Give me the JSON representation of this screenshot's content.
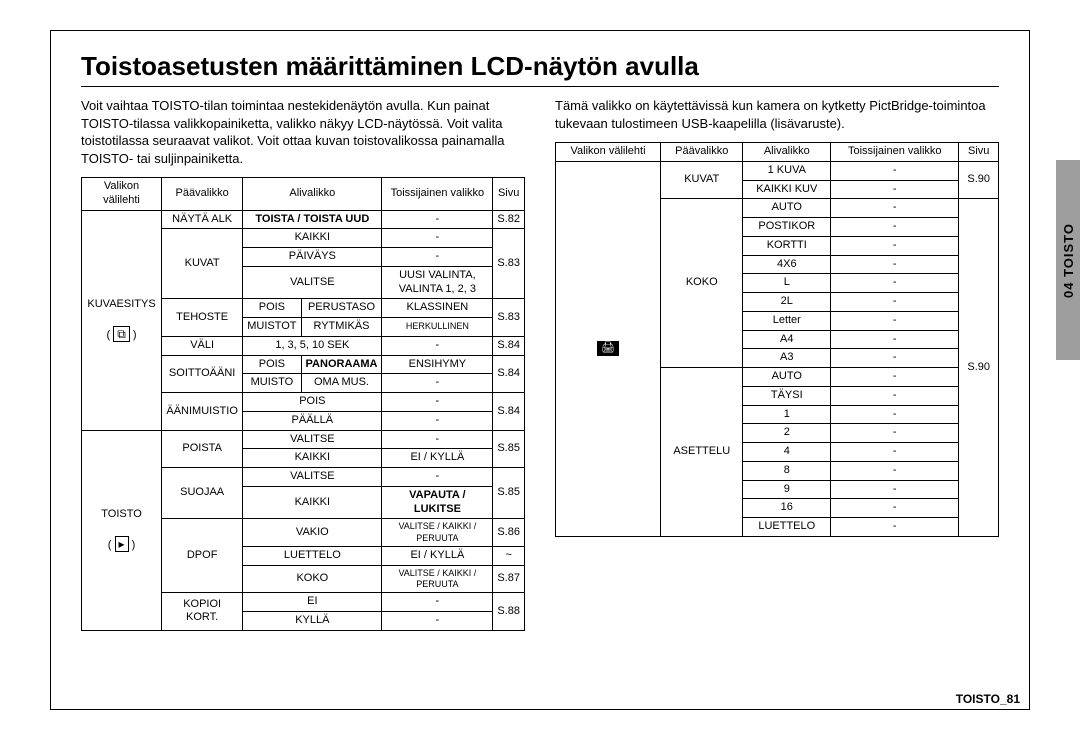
{
  "title": "Toistoasetusten määrittäminen LCD-näytön avulla",
  "intro_left": "Voit vaihtaa TOISTO-tilan toimintaa nestekidenäytön avulla. Kun painat TOISTO-tilassa valikkopainiketta, valikko näkyy LCD-näytössä. Voit valita toistotilassa seuraavat valikot. Voit ottaa kuvan toistovalikossa painamalla TOISTO- tai suljinpainiketta.",
  "intro_right": "Tämä valikko on käytettävissä kun kamera on kytketty PictBridge-toimintoa tukevaan tulostimeen USB-kaapelilla (lisävaruste).",
  "headers": {
    "c1": "Valikon välilehti",
    "c2": "Päävalikko",
    "c3": "Alivalikko",
    "c4a": "Toissijainen valikko",
    "c4b": "Toissijainen valikko",
    "c5": "Sivu"
  },
  "left": {
    "tab1_name": "KUVAESITYS",
    "tab1_sym": "⧉",
    "tab2_name": "TOISTO",
    "tab2_sym": "▸",
    "r_nayta": "NÄYTÄ ALK",
    "r_toista": "TOISTA / TOISTA UUD",
    "p82": "S.82",
    "r_kuvat": "KUVAT",
    "r_kaikki": "KAIKKI",
    "r_paivays": "PÄIVÄYS",
    "r_valitse": "VALITSE",
    "r_uusi": "UUSI VALINTA, VALINTA 1, 2, 3",
    "p83": "S.83",
    "r_tehoste": "TEHOSTE",
    "r_pois": "POIS",
    "r_perustaso": "PERUSTASO",
    "r_klassinen": "KLASSINEN",
    "r_muistot": "MUISTOT",
    "r_rytmikas": "RYTMIKÄS",
    "r_herkullinen": "HERKULLINEN",
    "r_vali": "VÄLI",
    "r_sek": "1, 3, 5, 10 SEK",
    "p84": "S.84",
    "r_soitto": "SOITTOÄÄNI",
    "r_panoraama": "PANORAAMA",
    "r_ensihymy": "ENSIHYMY",
    "r_muisto": "MUISTO",
    "r_omamus": "OMA MUS.",
    "r_aanim": "ÄÄNIMUISTIO",
    "r_paalla": "PÄÄLLÄ",
    "r_poista": "POISTA",
    "r_eikylla": "EI / KYLLÄ",
    "p85": "S.85",
    "r_suojaa": "SUOJAA",
    "r_vapauta": "VAPAUTA / LUKITSE",
    "r_dpof": "DPOF",
    "r_vakio": "VAKIO",
    "r_vkp": "VALITSE / KAIKKI / PERUUTA",
    "r_luettelo": "LUETTELO",
    "r_koko": "KOKO",
    "p86": "S.86",
    "tilde": "~",
    "p87": "S.87",
    "r_kopioi": "KOPIOI KORT.",
    "r_ei": "EI",
    "r_kylla": "KYLLÄ",
    "p88": "S.88",
    "dash": "-"
  },
  "right": {
    "tab_sym": "🖨",
    "r_kuvat": "KUVAT",
    "r_1kuva": "1 KUVA",
    "r_kaikkikuv": "KAIKKI KUV",
    "p90": "S.90",
    "r_koko": "KOKO",
    "r_auto": "AUTO",
    "r_postikor": "POSTIKOR",
    "r_kortti": "KORTTI",
    "r_4x6": "4X6",
    "r_L": "L",
    "r_2L": "2L",
    "r_letter": "Letter",
    "r_A4": "A4",
    "r_A3": "A3",
    "r_asettelu": "ASETTELU",
    "r_taysi": "TÄYSI",
    "r_1": "1",
    "r_2": "2",
    "r_4": "4",
    "r_8": "8",
    "r_9": "9",
    "r_16": "16",
    "r_luettelo": "LUETTELO",
    "dash": "-"
  },
  "side_tab": "04 TOISTO",
  "footer": "TOISTO_81"
}
